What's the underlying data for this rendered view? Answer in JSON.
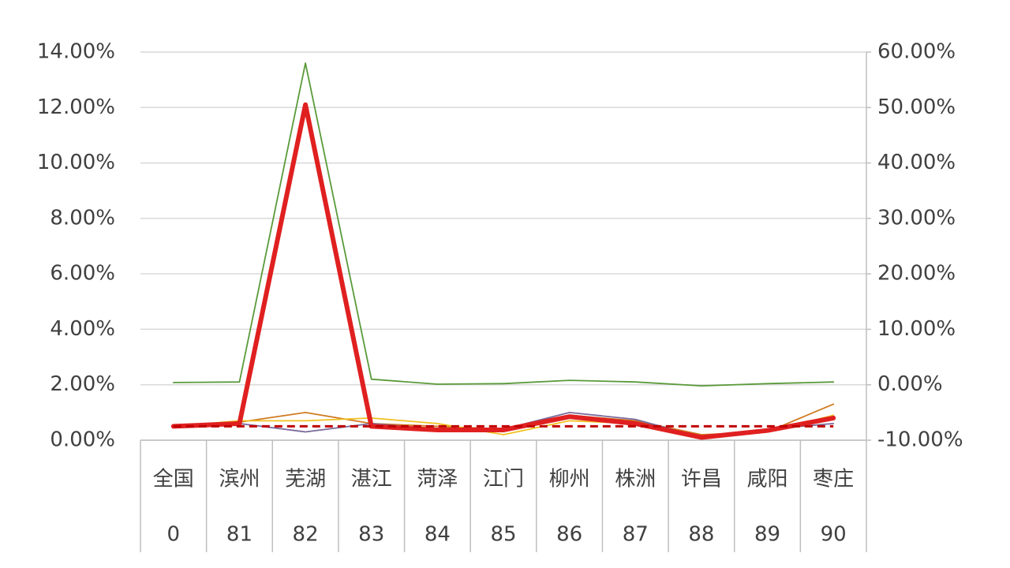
{
  "chart_data": {
    "type": "line",
    "categories": [
      "全国",
      "滨州",
      "芜湖",
      "湛江",
      "菏泽",
      "江门",
      "柳州",
      "株洲",
      "许昌",
      "咸阳",
      "枣庄"
    ],
    "category_numbers": [
      0,
      81,
      82,
      83,
      84,
      85,
      86,
      87,
      88,
      89,
      90
    ],
    "ylim": [
      0,
      14
    ],
    "yticks": [
      {
        "value": 0,
        "label": "0.00%"
      },
      {
        "value": 2,
        "label": "2.00%"
      },
      {
        "value": 4,
        "label": "4.00%"
      },
      {
        "value": 6,
        "label": "6.00%"
      },
      {
        "value": 8,
        "label": "8.00%"
      },
      {
        "value": 10,
        "label": "10.00%"
      },
      {
        "value": 12,
        "label": "12.00%"
      },
      {
        "value": 14,
        "label": "14.00%"
      }
    ],
    "y2lim": [
      -10,
      60
    ],
    "y2ticks": [
      {
        "value": -10,
        "label": "-10.00%"
      },
      {
        "value": 0,
        "label": "0.00%"
      },
      {
        "value": 10,
        "label": "10.00%"
      },
      {
        "value": 20,
        "label": "20.00%"
      },
      {
        "value": 30,
        "label": "30.00%"
      },
      {
        "value": 40,
        "label": "40.00%"
      },
      {
        "value": 50,
        "label": "50.00%"
      },
      {
        "value": 60,
        "label": "60.00%"
      }
    ],
    "grid": true,
    "series": [
      {
        "color": "#5a9a3a",
        "width": 1.8,
        "axis": "y2",
        "values": [
          0.4,
          0.5,
          58.0,
          1.0,
          0.1,
          0.2,
          0.8,
          0.5,
          -0.2,
          0.2,
          0.5
        ]
      },
      {
        "color": "#d07a20",
        "width": 1.8,
        "values": [
          0.5,
          0.65,
          1.0,
          0.6,
          0.5,
          0.4,
          0.9,
          0.7,
          0.2,
          0.3,
          1.3
        ]
      },
      {
        "color": "#7a6a9a",
        "width": 1.8,
        "values": [
          0.5,
          0.6,
          0.3,
          0.6,
          0.4,
          0.4,
          1.0,
          0.75,
          0.1,
          0.4,
          0.6
        ]
      },
      {
        "color": "#f0c020",
        "width": 1.8,
        "values": [
          0.5,
          0.7,
          0.7,
          0.8,
          0.6,
          0.2,
          0.7,
          0.6,
          0.05,
          0.3,
          0.9
        ]
      },
      {
        "color": "#e02020",
        "width": 6,
        "values": [
          0.5,
          0.6,
          12.1,
          0.5,
          0.37,
          0.37,
          0.85,
          0.6,
          0.1,
          0.35,
          0.8
        ]
      },
      {
        "color": "#c00000",
        "width": 3,
        "dashed": true,
        "values": [
          0.5,
          0.5,
          0.5,
          0.5,
          0.5,
          0.5,
          0.5,
          0.5,
          0.5,
          0.5,
          0.5
        ]
      }
    ]
  }
}
